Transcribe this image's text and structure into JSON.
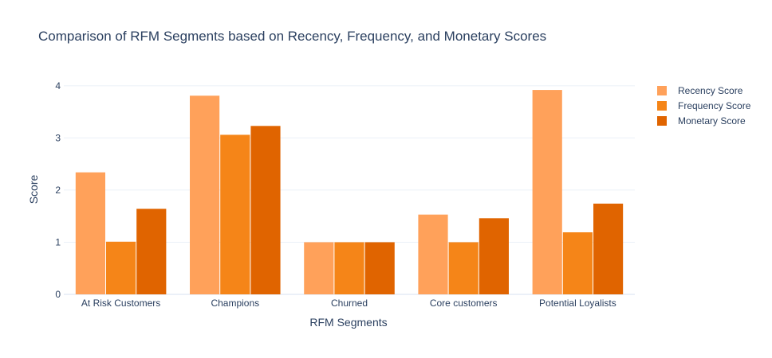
{
  "chart_data": {
    "type": "bar",
    "title": "Comparison of RFM Segments based on Recency, Frequency, and Monetary Scores",
    "xlabel": "RFM Segments",
    "ylabel": "Score",
    "categories": [
      "At Risk Customers",
      "Champions",
      "Churned",
      "Core customers",
      "Potential Loyalists"
    ],
    "series": [
      {
        "name": "Recency Score",
        "color": "#ffa15a",
        "values": [
          2.34,
          3.81,
          1.0,
          1.53,
          3.92
        ]
      },
      {
        "name": "Frequency Score",
        "color": "#f58518",
        "values": [
          1.01,
          3.06,
          1.0,
          1.0,
          1.19
        ]
      },
      {
        "name": "Monetary Score",
        "color": "#e06400",
        "values": [
          1.64,
          3.23,
          1.0,
          1.46,
          1.74
        ]
      }
    ],
    "ylim": [
      0,
      4.15
    ],
    "yticks": [
      0,
      1,
      2,
      3,
      4
    ],
    "grid": true,
    "legend_position": "top-right"
  }
}
